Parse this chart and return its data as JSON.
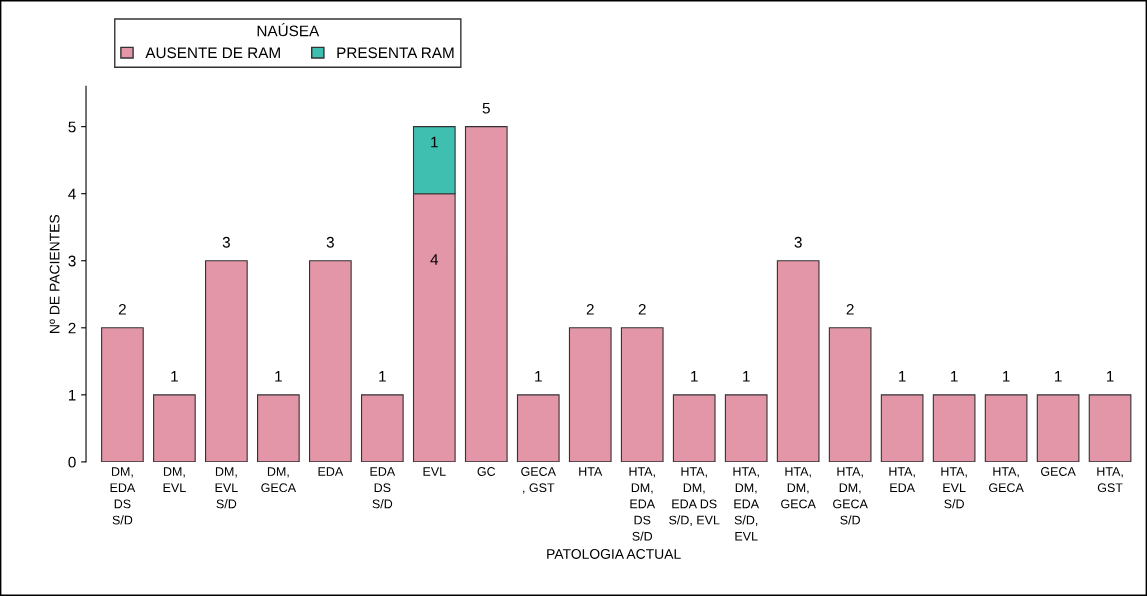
{
  "chart_data": {
    "type": "bar",
    "stacked": true,
    "xlabel": "PATOLOGIA ACTUAL",
    "ylabel": "Nº DE PACIENTES",
    "legend_title": "NAÚSEA",
    "legend": "top left",
    "data_labels": true,
    "categories": [
      "DM,\nEDA\nDS\nS/D",
      "DM,\nEVL",
      "DM,\nEVL\nS/D",
      "DM,\nGECA",
      "EDA",
      "EDA\nDS\nS/D",
      "EVL",
      "GC",
      "GECA\n, GST",
      "HTA",
      "HTA,\nDM,\nEDA\nDS\nS/D",
      "HTA,\nDM,\nEDA DS\nS/D, EVL",
      "HTA,\nDM,\nEDA\nS/D,\nEVL",
      "HTA,\nDM,\nGECA",
      "HTA,\nDM,\nGECA\nS/D",
      "HTA,\nEDA",
      "HTA,\nEVL\nS/D",
      "HTA,\nGECA",
      "GECA",
      "HTA,\nGST"
    ],
    "series": [
      {
        "name": "AUSENTE DE RAM",
        "color": "#e396a7",
        "values": [
          2,
          1,
          3,
          1,
          3,
          1,
          4,
          5,
          1,
          2,
          2,
          1,
          1,
          3,
          2,
          1,
          1,
          1,
          1,
          1
        ]
      },
      {
        "name": "PRESENTA RAM",
        "color": "#3fbfb0",
        "values": [
          null,
          null,
          null,
          null,
          null,
          null,
          1,
          null,
          null,
          null,
          null,
          null,
          null,
          null,
          null,
          null,
          null,
          null,
          null,
          null
        ]
      }
    ],
    "ylim": [
      0,
      5.6
    ],
    "yticks": [
      0,
      1,
      2,
      3,
      4,
      5
    ],
    "grid": false
  }
}
